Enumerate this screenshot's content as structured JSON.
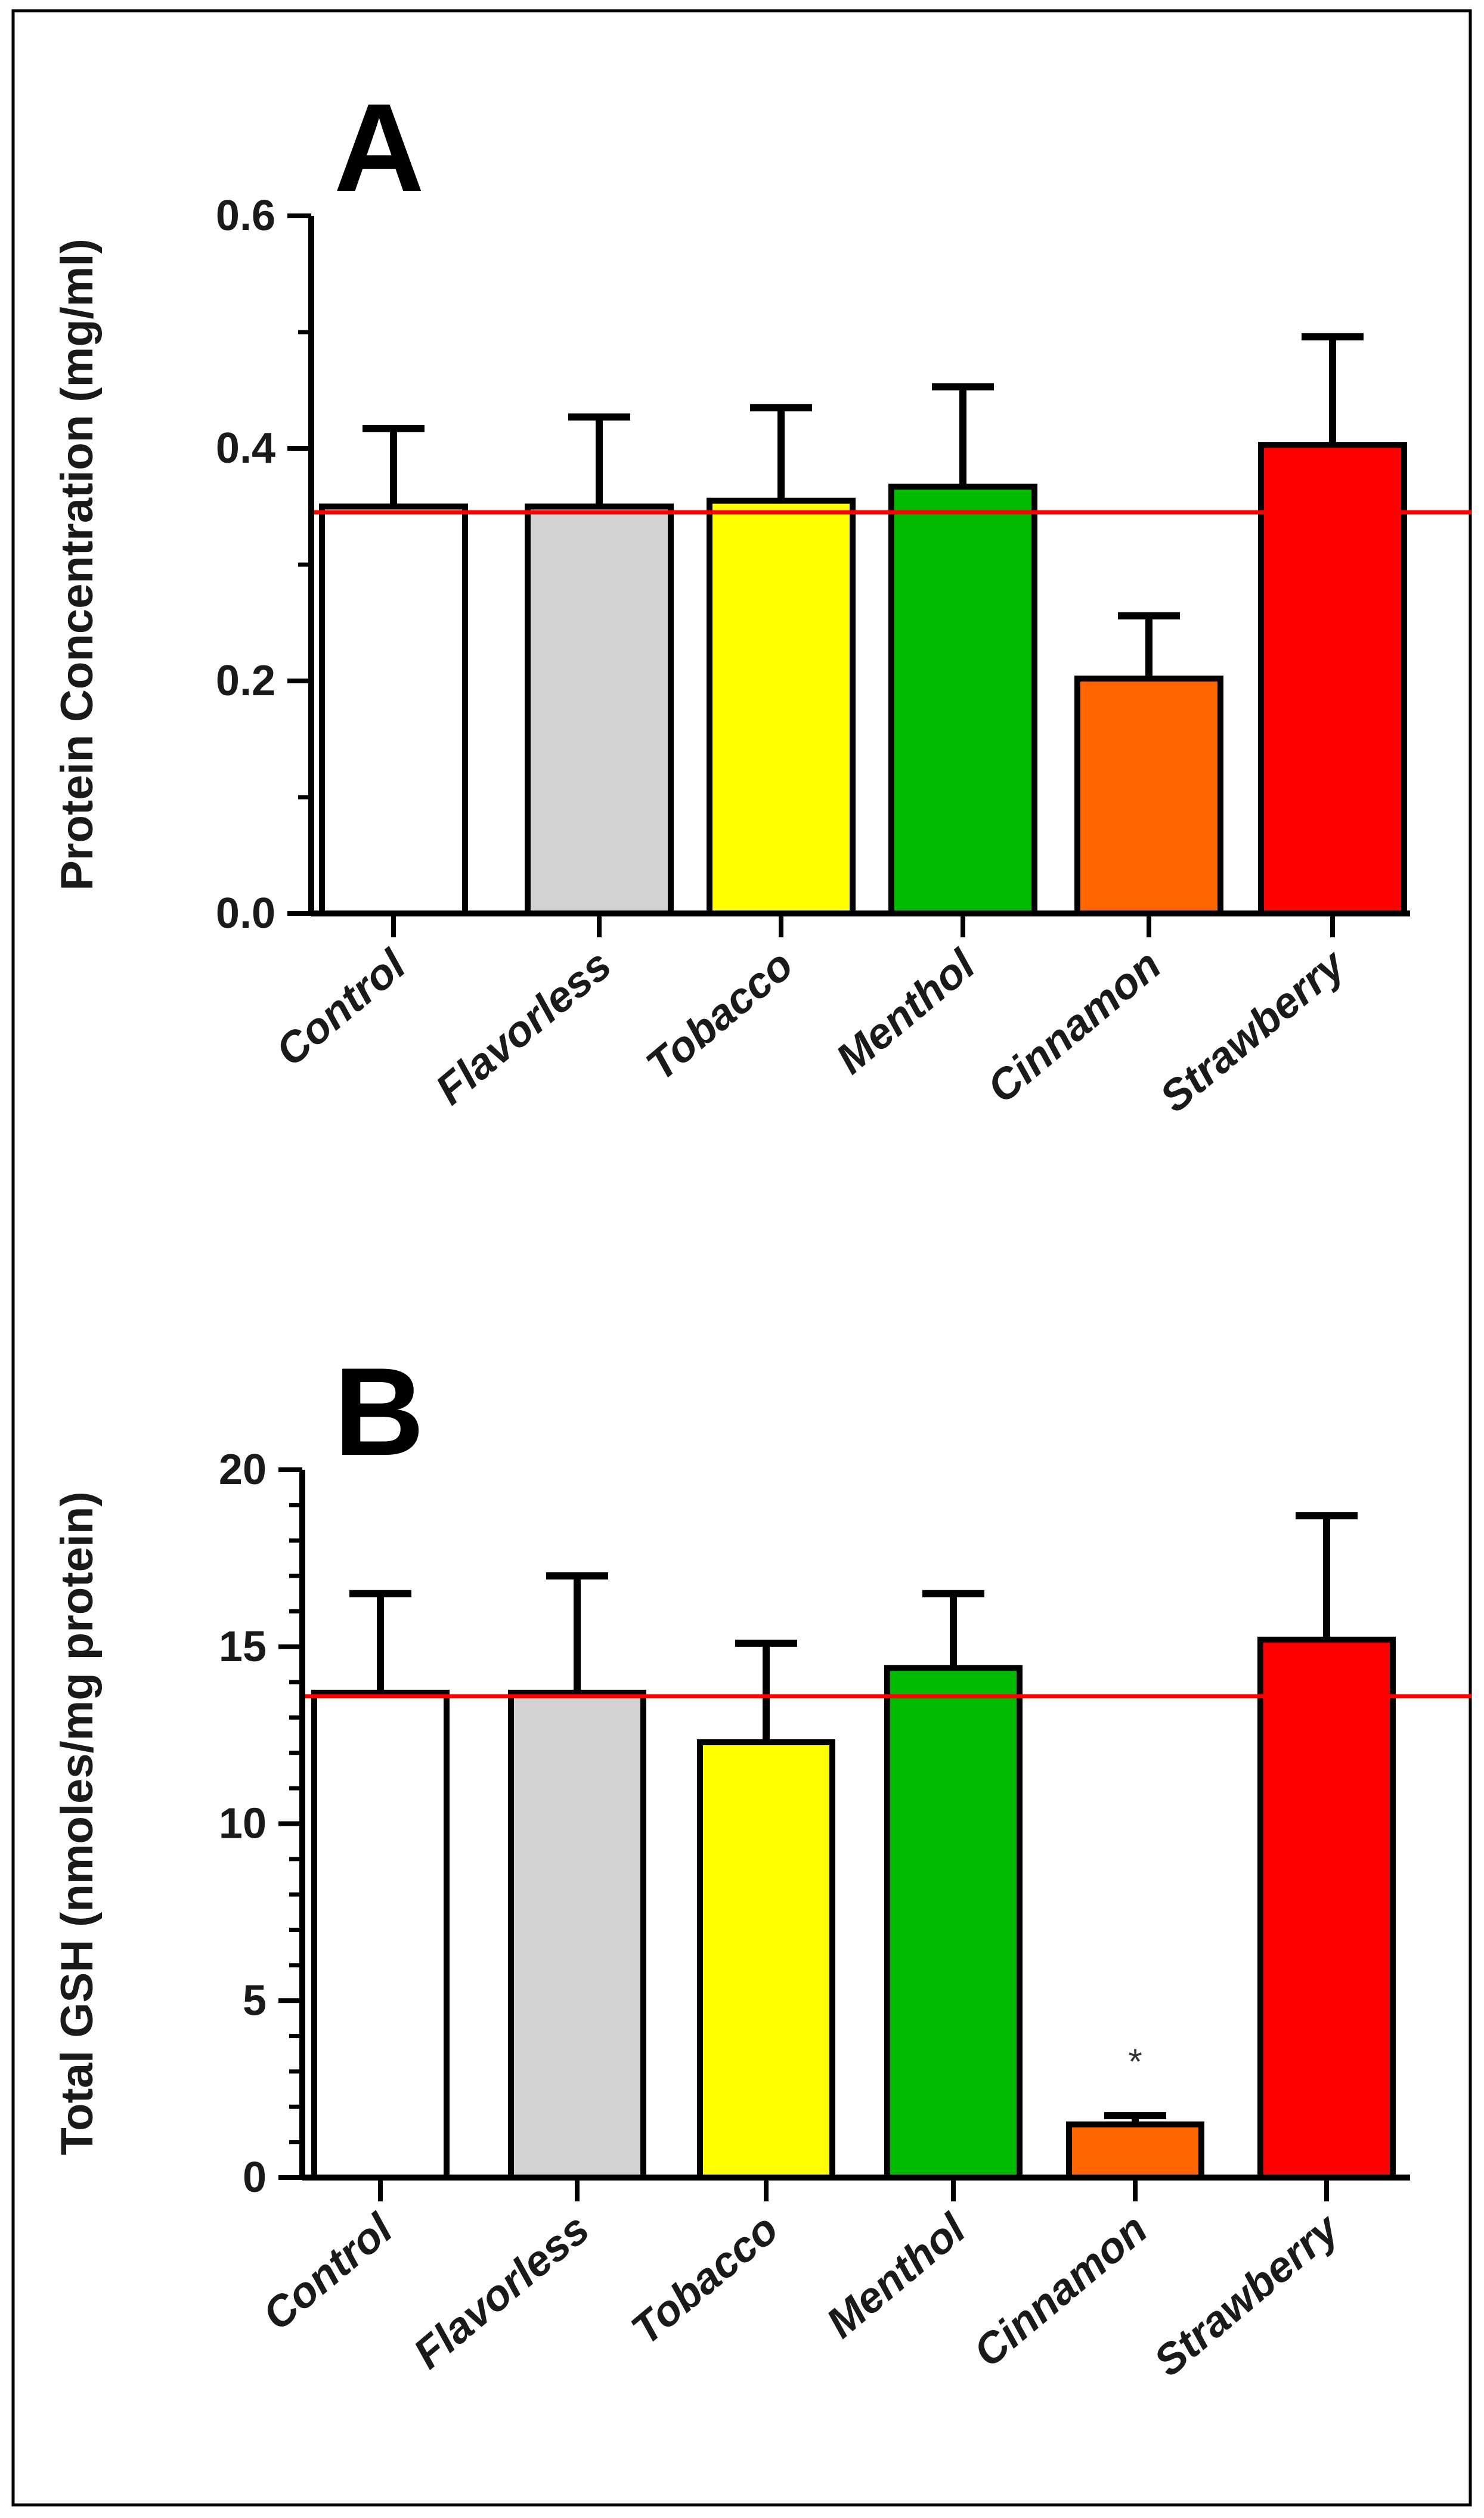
{
  "chart_data": [
    {
      "type": "bar",
      "panel": "A",
      "title": "",
      "xlabel": "",
      "ylabel": "Protein Concentration (mg/ml)",
      "ylim": [
        0,
        0.6
      ],
      "yticks": [
        "0.0",
        "0.2",
        "0.4",
        "0.6"
      ],
      "categories": [
        "Control",
        "Flavorless",
        "Tobacco",
        "Menthol",
        "Cinnamon",
        "Strawberry"
      ],
      "values": [
        0.35,
        0.35,
        0.355,
        0.367,
        0.202,
        0.403
      ],
      "errors": [
        0.067,
        0.077,
        0.08,
        0.086,
        0.054,
        0.093
      ],
      "annotations": [
        "",
        "",
        "",
        "",
        "",
        ""
      ],
      "reference_line": 0.345,
      "colors": [
        "#ffffff",
        "#d3d3d3",
        "#ffff00",
        "#00bb00",
        "#ff6600",
        "#ff0000"
      ],
      "reference_color": "#ff0000",
      "grid": false
    },
    {
      "type": "bar",
      "panel": "B",
      "title": "",
      "xlabel": "",
      "ylabel": "Total GSH (nmoles/mg protein)",
      "ylim": [
        0,
        20
      ],
      "yticks": [
        "0",
        "5",
        "10",
        "15",
        "20"
      ],
      "categories": [
        "Control",
        "Flavorless",
        "Tobacco",
        "Menthol",
        "Cinnamon",
        "Strawberry"
      ],
      "values": [
        13.7,
        13.7,
        12.3,
        14.4,
        1.5,
        15.2
      ],
      "errors": [
        2.8,
        3.3,
        2.8,
        2.1,
        0.25,
        3.5
      ],
      "annotations": [
        "",
        "",
        "",
        "",
        "*",
        ""
      ],
      "reference_line": 13.6,
      "colors": [
        "#ffffff",
        "#d3d3d3",
        "#ffff00",
        "#00bb00",
        "#ff6600",
        "#ff0000"
      ],
      "reference_color": "#ff0000",
      "grid": false
    }
  ]
}
